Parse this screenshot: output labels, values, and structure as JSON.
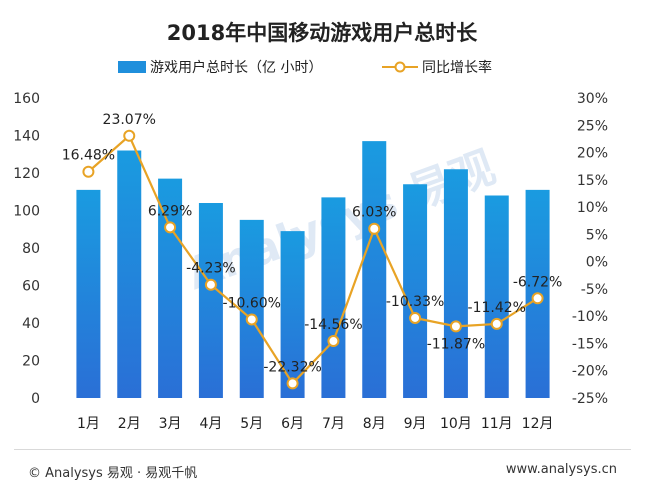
{
  "footer": {
    "left": "© Analysys 易观 · 易观千帆",
    "right": "www.analysys.cn"
  },
  "chart_data": {
    "type": "bar+line",
    "title": "2018年中国移动游戏用户总时长",
    "categories": [
      "1月",
      "2月",
      "3月",
      "4月",
      "5月",
      "6月",
      "7月",
      "8月",
      "9月",
      "10月",
      "11月",
      "12月"
    ],
    "series": [
      {
        "name": "游戏用户总时长（亿 小时）",
        "type": "bar",
        "axis": "left",
        "values": [
          111,
          132,
          117,
          104,
          95,
          89,
          107,
          137,
          114,
          122,
          108,
          111
        ],
        "color": "#1f8fdc"
      },
      {
        "name": "同比增长率",
        "type": "line",
        "axis": "right",
        "values": [
          16.48,
          23.07,
          6.29,
          -4.23,
          -10.6,
          -22.32,
          -14.56,
          6.03,
          -10.33,
          -11.87,
          -11.42,
          -6.72
        ],
        "labels": [
          "16.48%",
          "23.07%",
          "6.29%",
          "-4.23%",
          "-10.60%",
          "-22.32%",
          "-14.56%",
          "6.03%",
          "-10.33%",
          "-11.87%",
          "-11.42%",
          "-6.72%"
        ],
        "color": "#e8a325"
      }
    ],
    "y_left": {
      "min": 0,
      "max": 160,
      "ticks": [
        0,
        20,
        40,
        60,
        80,
        100,
        120,
        140,
        160
      ],
      "tick_labels": [
        "0",
        "20",
        "40",
        "60",
        "80",
        "100",
        "120",
        "140",
        "160"
      ]
    },
    "y_right": {
      "min": -25,
      "max": 30,
      "ticks": [
        -25,
        -20,
        -15,
        -10,
        -5,
        0,
        5,
        10,
        15,
        20,
        25,
        30
      ],
      "tick_labels": [
        "-25%",
        "-20%",
        "-15%",
        "-10%",
        "-5%",
        "0%",
        "5%",
        "10%",
        "15%",
        "20%",
        "25%",
        "30%"
      ]
    },
    "legend_position": "top",
    "watermark": "Analysys 易观"
  }
}
